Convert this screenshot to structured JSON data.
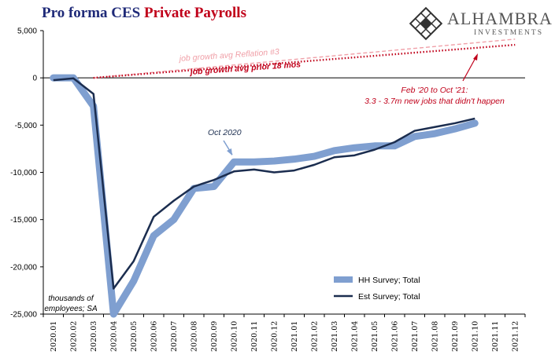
{
  "title": {
    "part1": "Pro forma CES",
    "part2": "Private Payrolls"
  },
  "logo": {
    "brand": "ALHAMBRA",
    "sub": "INVESTMENTS",
    "icon": "diamond-lattice-icon"
  },
  "colors": {
    "hh": "#7f9fd0",
    "est": "#1b2d4f",
    "reflation": "#f0a0a8",
    "prior": "#c0001a",
    "title_blue": "#1f2a78",
    "title_red": "#c0001a"
  },
  "annotations": {
    "reflation": "job growth avg Reflation #3",
    "prior": "job growth avg prior 18 mos",
    "oct2020": "Oct 2020",
    "feb_line1": "Feb '20 to Oct '21:",
    "feb_line2": "3.3 - 3.7m new jobs that didn't happen",
    "units_line1": "thousands of",
    "units_line2": "employees; SA"
  },
  "chart_data": {
    "type": "line",
    "categories": [
      "2020.01",
      "2020.02",
      "2020.03",
      "2020.04",
      "2020.05",
      "2020.06",
      "2020.07",
      "2020.08",
      "2020.09",
      "2020.10",
      "2020.11",
      "2020.12",
      "2021.01",
      "2021.02",
      "2021.03",
      "2021.04",
      "2021.05",
      "2021.06",
      "2021.07",
      "2021.08",
      "2021.09",
      "2021.10",
      "2021.11",
      "2021.12"
    ],
    "y_ticks": [
      5000,
      0,
      -5000,
      -10000,
      -15000,
      -20000,
      -25000
    ],
    "y_tick_labels": [
      "5,000",
      "0",
      "-5,000",
      "-10,000",
      "-15,000",
      "-20,000",
      "-25,000"
    ],
    "ylim": [
      -25000,
      5000
    ],
    "series": [
      {
        "name": "HH Survey; Total",
        "values": [
          0,
          0,
          -3000,
          -25000,
          -21500,
          -16700,
          -15000,
          -11700,
          -11500,
          -8900,
          -8900,
          -8800,
          -8600,
          -8300,
          -7700,
          -7400,
          -7200,
          -7200,
          -6200,
          -5900,
          -5400,
          -4800,
          null,
          null
        ]
      },
      {
        "name": "Est Survey; Total",
        "values": [
          -250,
          -50,
          -1700,
          -22300,
          -19400,
          -14700,
          -13000,
          -11500,
          -10800,
          -9900,
          -9700,
          -10000,
          -9800,
          -9200,
          -8400,
          -8200,
          -7600,
          -6800,
          -5600,
          -5200,
          -4800,
          -4300,
          null,
          null
        ]
      },
      {
        "name": "job growth avg Reflation #3",
        "line_style": "dashed",
        "start": [
          2,
          0
        ],
        "end": [
          23,
          4100
        ]
      },
      {
        "name": "job growth avg prior 18 mos",
        "line_style": "dotted",
        "start": [
          2,
          0
        ],
        "end": [
          23,
          3500
        ]
      }
    ],
    "legend": {
      "position": "bottom-right"
    },
    "grid": false
  }
}
